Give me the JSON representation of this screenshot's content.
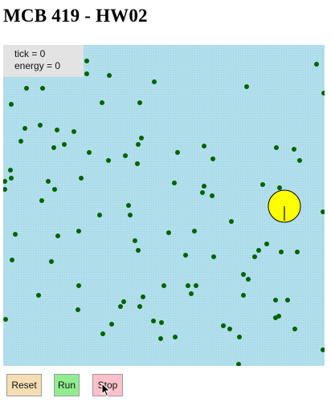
{
  "page": {
    "title": "MCB 419 - HW02"
  },
  "readout": {
    "tick": "tick = 0",
    "energy": "energy = 0"
  },
  "buttons": {
    "reset": "Reset",
    "run": "Run",
    "stop": "Stop"
  },
  "colors": {
    "canvas_background": "#b2dfec",
    "food": "#006400",
    "agent_fill": "#ffff00",
    "agent_stroke": "#000000",
    "reset": "#f5deb3",
    "run": "#90ee90",
    "stop": "#ffc0cb"
  },
  "icons": {
    "cursor": "mouse-pointer-icon"
  }
}
